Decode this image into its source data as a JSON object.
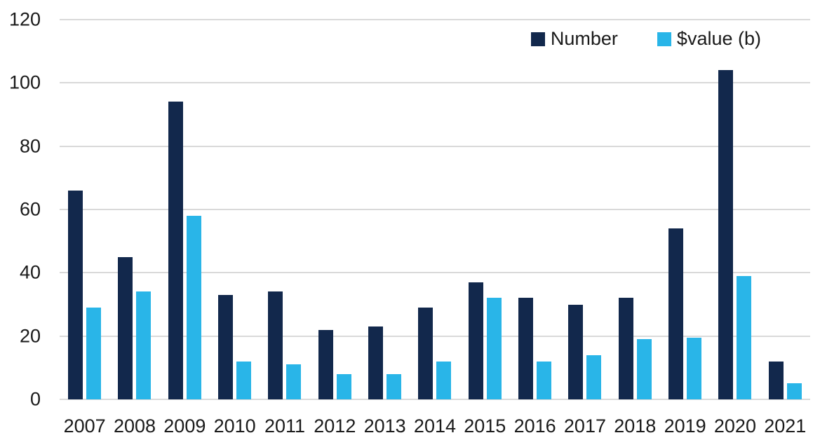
{
  "colors": {
    "number_series": "#12284C",
    "value_series": "#29B5E8",
    "gridline": "#D9D9D9",
    "text": "#1A1A1A",
    "background": "#FFFFFF"
  },
  "legend": {
    "position": "top-right"
  },
  "chart_data": {
    "type": "bar",
    "title": "",
    "xlabel": "",
    "ylabel": "",
    "categories": [
      "2007",
      "2008",
      "2009",
      "2010",
      "2011",
      "2012",
      "2013",
      "2014",
      "2015",
      "2016",
      "2017",
      "2018",
      "2019",
      "2020",
      "2021"
    ],
    "series": [
      {
        "name": "Number",
        "color": "#12284C",
        "values": [
          66,
          45,
          94,
          33,
          34,
          22,
          23,
          29,
          37,
          32,
          30,
          32,
          54,
          104,
          12
        ]
      },
      {
        "name": "$value (b)",
        "color": "#29B5E8",
        "values": [
          29,
          34,
          58,
          12,
          11,
          8,
          8,
          12,
          32,
          12,
          14,
          19,
          19.5,
          39,
          5
        ]
      }
    ],
    "ylim": [
      0,
      120
    ],
    "yticks": [
      0,
      20,
      40,
      60,
      80,
      100,
      120
    ],
    "grid": "horizontal",
    "legend_position": "top-right"
  }
}
